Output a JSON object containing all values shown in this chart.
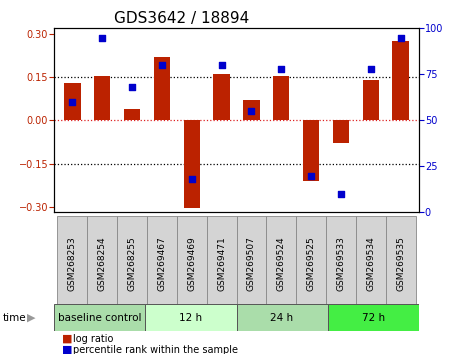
{
  "title": "GDS3642 / 18894",
  "samples": [
    "GSM268253",
    "GSM268254",
    "GSM268255",
    "GSM269467",
    "GSM269469",
    "GSM269471",
    "GSM269507",
    "GSM269524",
    "GSM269525",
    "GSM269533",
    "GSM269534",
    "GSM269535"
  ],
  "log_ratios": [
    0.13,
    0.155,
    0.04,
    0.22,
    -0.305,
    0.16,
    0.07,
    0.155,
    -0.21,
    -0.08,
    0.14,
    0.275
  ],
  "percentile_ranks": [
    60,
    95,
    68,
    80,
    18,
    80,
    55,
    78,
    20,
    10,
    78,
    95
  ],
  "groups": [
    {
      "label": "baseline control",
      "start": 0,
      "end": 3,
      "color": "#aaddaa"
    },
    {
      "label": "12 h",
      "start": 3,
      "end": 6,
      "color": "#ccffcc"
    },
    {
      "label": "24 h",
      "start": 6,
      "end": 9,
      "color": "#aaddaa"
    },
    {
      "label": "72 h",
      "start": 9,
      "end": 12,
      "color": "#44ee44"
    }
  ],
  "bar_color": "#bb2200",
  "dot_color": "#0000cc",
  "ylim_left": [
    -0.32,
    0.32
  ],
  "ylim_right": [
    0,
    100
  ],
  "yticks_left": [
    -0.3,
    -0.15,
    0,
    0.15,
    0.3
  ],
  "yticks_right": [
    0,
    25,
    50,
    75,
    100
  ],
  "hlines_black": [
    -0.15,
    0.15
  ],
  "hline_red": 0,
  "title_fontsize": 11,
  "tick_fontsize": 7,
  "bar_width": 0.55
}
